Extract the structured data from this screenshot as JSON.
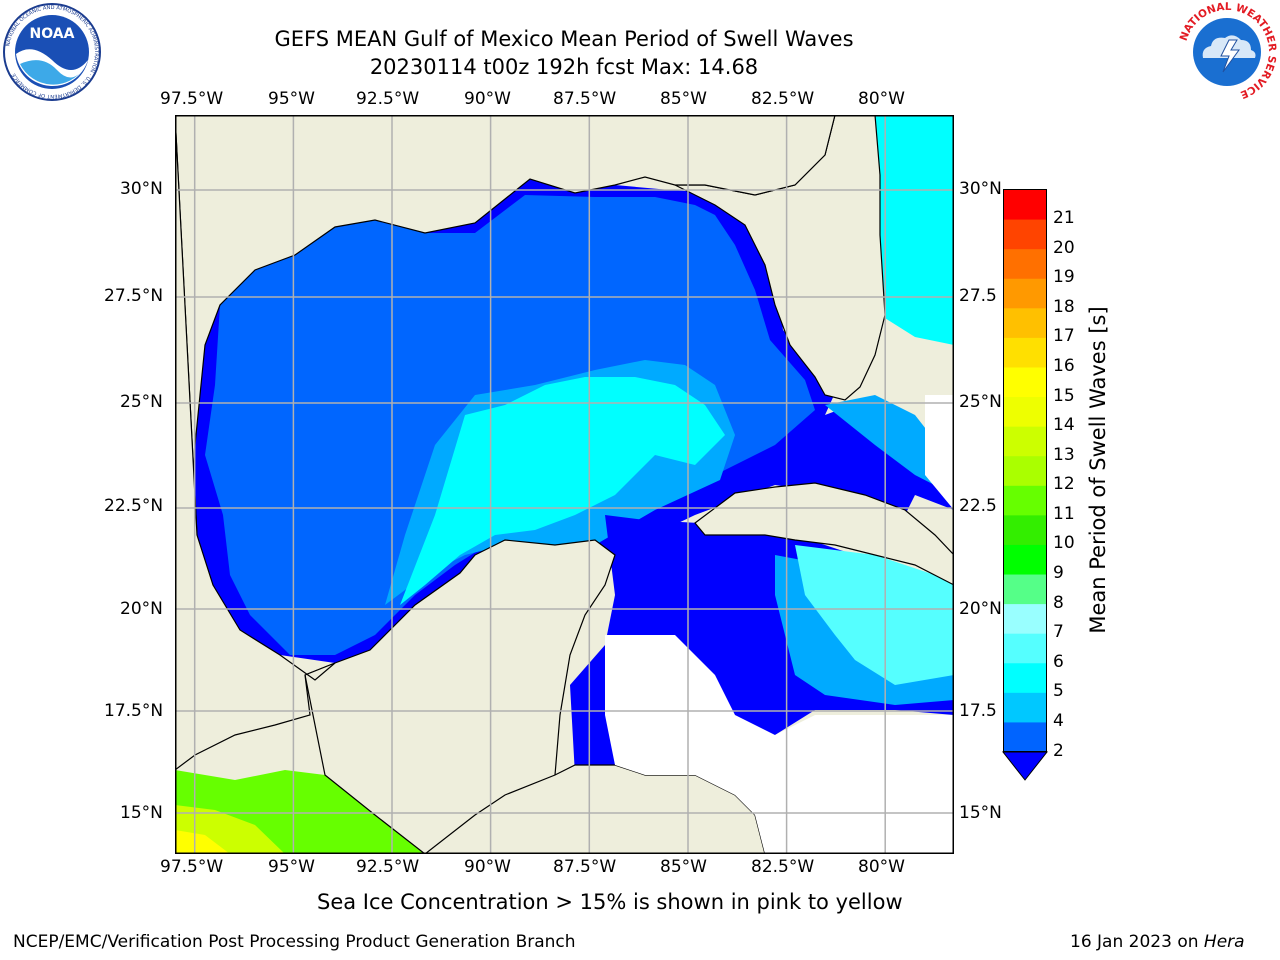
{
  "header": {
    "title_line1": "GEFS MEAN Gulf of Mexico Mean Period of Swell Waves",
    "title_line2": "20230114 t00z 192h fcst   Max: 14.68"
  },
  "logos": {
    "noaa_text": "NOAA",
    "noaa_ring": "NATIONAL OCEANIC AND ATMOSPHERIC ADMINISTRATION · U.S. DEPARTMENT OF COMMERCE",
    "nws_ring": "NATIONAL WEATHER SERVICE"
  },
  "map": {
    "lon_ticks": [
      "97.5°W",
      "95°W",
      "92.5°W",
      "90°W",
      "87.5°W",
      "85°W",
      "82.5°W",
      "80°W"
    ],
    "lat_ticks_left": [
      "30°N",
      "27.5°N",
      "25°N",
      "22.5°N",
      "20°N",
      "17.5°N",
      "15°N"
    ],
    "lat_ticks_right": [
      "30°N",
      "27.5",
      "25°N",
      "22.5",
      "20°N",
      "17.5",
      "15°N"
    ],
    "lon_range": [
      -98,
      -78.25
    ],
    "lat_range": [
      14,
      32
    ],
    "colors": {
      "land": "#eeeedc",
      "ocean_blue": "#0000ff",
      "ocean_medium": "#0066ff",
      "ocean_light": "#00aaff",
      "cyan": "#00ffff",
      "light_cyan": "#55ffff",
      "green_swell": "#66ff00",
      "yellow_green": "#ccff00",
      "yellow": "#ffff00",
      "grid": "#b0b0b0"
    }
  },
  "colorbar": {
    "label": "Mean Period of Swell Waves [s]",
    "ticks": [
      "2",
      "4",
      "5",
      "6",
      "7",
      "8",
      "9",
      "10",
      "11",
      "12",
      "13",
      "14",
      "15",
      "16",
      "17",
      "18",
      "19",
      "20",
      "21"
    ],
    "colors": [
      "#0064ff",
      "#00c8ff",
      "#00ffff",
      "#55ffff",
      "#99ffff",
      "#55ff88",
      "#00ff00",
      "#33ee00",
      "#66ff00",
      "#aaff00",
      "#ccff00",
      "#eeff00",
      "#ffff00",
      "#ffe000",
      "#ffc000",
      "#ff9900",
      "#ff7000",
      "#ff4400",
      "#ff0000"
    ],
    "extend_color": "#0000ff"
  },
  "caption": "Sea Ice Concentration > 15% is shown in pink to yellow",
  "footer": {
    "left": "NCEP/EMC/Verification Post Processing Product Generation Branch",
    "right_date": "16 Jan 2023 on ",
    "right_host": "Hera"
  }
}
